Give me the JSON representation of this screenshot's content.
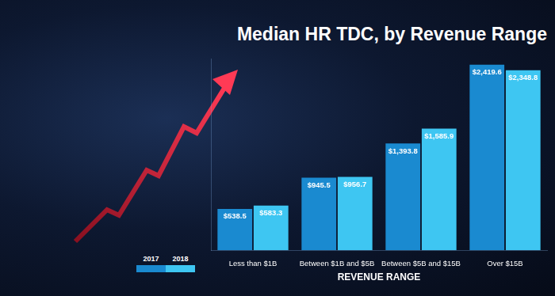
{
  "chart_data": {
    "type": "bar",
    "title": "Median HR TDC, by Revenue Range",
    "x_label": "REVENUE RANGE",
    "categories": [
      "Less than $1B",
      "Between $1B and $5B",
      "Between $5B and $15B",
      "Over $15B"
    ],
    "series": [
      {
        "name": "2017",
        "color": "#1a8ad0",
        "values": [
          538.5,
          945.5,
          1393.8,
          2419.6
        ],
        "value_labels": [
          "$538.5",
          "$945.5",
          "$1,393.8",
          "$2,419.6"
        ]
      },
      {
        "name": "2018",
        "color": "#3ec6f2",
        "values": [
          583.3,
          956.7,
          1585.9,
          2348.8
        ],
        "value_labels": [
          "$583.3",
          "$956.7",
          "$1,585.9",
          "$2,348.8"
        ]
      }
    ],
    "ylim": [
      0,
      2500
    ],
    "grid": false,
    "legend": "lower left",
    "data_labels": true,
    "tick_labels": "x"
  }
}
